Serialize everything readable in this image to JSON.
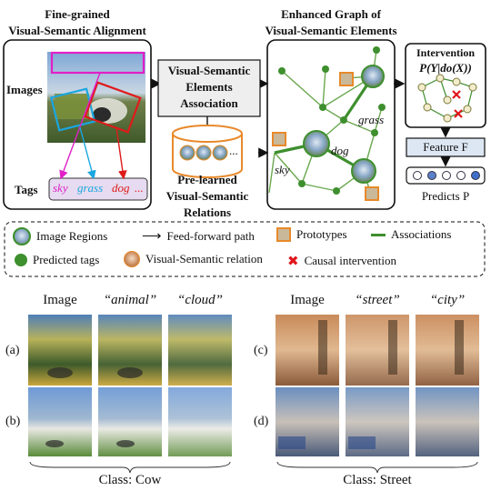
{
  "diagram": {
    "title_alignment_line1": "Fine-grained",
    "title_alignment_line2": "Visual-Semantic Alignment",
    "label_images": "Images",
    "label_tags": "Tags",
    "tags": [
      "sky",
      "grass",
      "dog",
      "..."
    ],
    "assoc_line1": "Visual-Semantic",
    "assoc_line2": "Elements",
    "assoc_line3": "Association",
    "prelearned_line1": "Pre-learned",
    "prelearned_line2": "Visual-Semantic",
    "prelearned_line3": "Relations",
    "db_dots": "...",
    "graph_title_line1": "Enhanced Graph of",
    "graph_title_line2": "Visual-Semantic Elements",
    "graph_labels": {
      "grass": "grass",
      "dog": "dog",
      "sky": "sky"
    },
    "intervention_title": "Intervention",
    "intervention_formula": "P(Y|do(X))",
    "feature_label": "Feature F",
    "predicts_label": "Predicts P"
  },
  "legend": {
    "image_regions": "Image Regions",
    "feed_forward": "Feed-forward path",
    "prototypes": "Prototypes",
    "associations": "Associations",
    "predicted_tags": "Predicted tags",
    "vs_relation": "Visual-Semantic relation",
    "causal_intervention": "Causal intervention"
  },
  "examples": {
    "left": {
      "header_image": "Image",
      "header_1": "“animal”",
      "header_2": "“cloud”",
      "row_a": "(a)",
      "row_b": "(b)",
      "class_label": "Class: Cow"
    },
    "right": {
      "header_image": "Image",
      "header_1": "“street”",
      "header_2": "“city”",
      "row_c": "(c)",
      "row_d": "(d)",
      "class_label": "Class: Street"
    }
  },
  "colors": {
    "green_node": "#3e8f2e",
    "green_edge": "#6aa84f",
    "tag_sky": "#e020c8",
    "tag_grass": "#1aa6e0",
    "tag_dog": "#e01a1a",
    "prototype": "#e8892a",
    "cross": "#e0161b"
  }
}
